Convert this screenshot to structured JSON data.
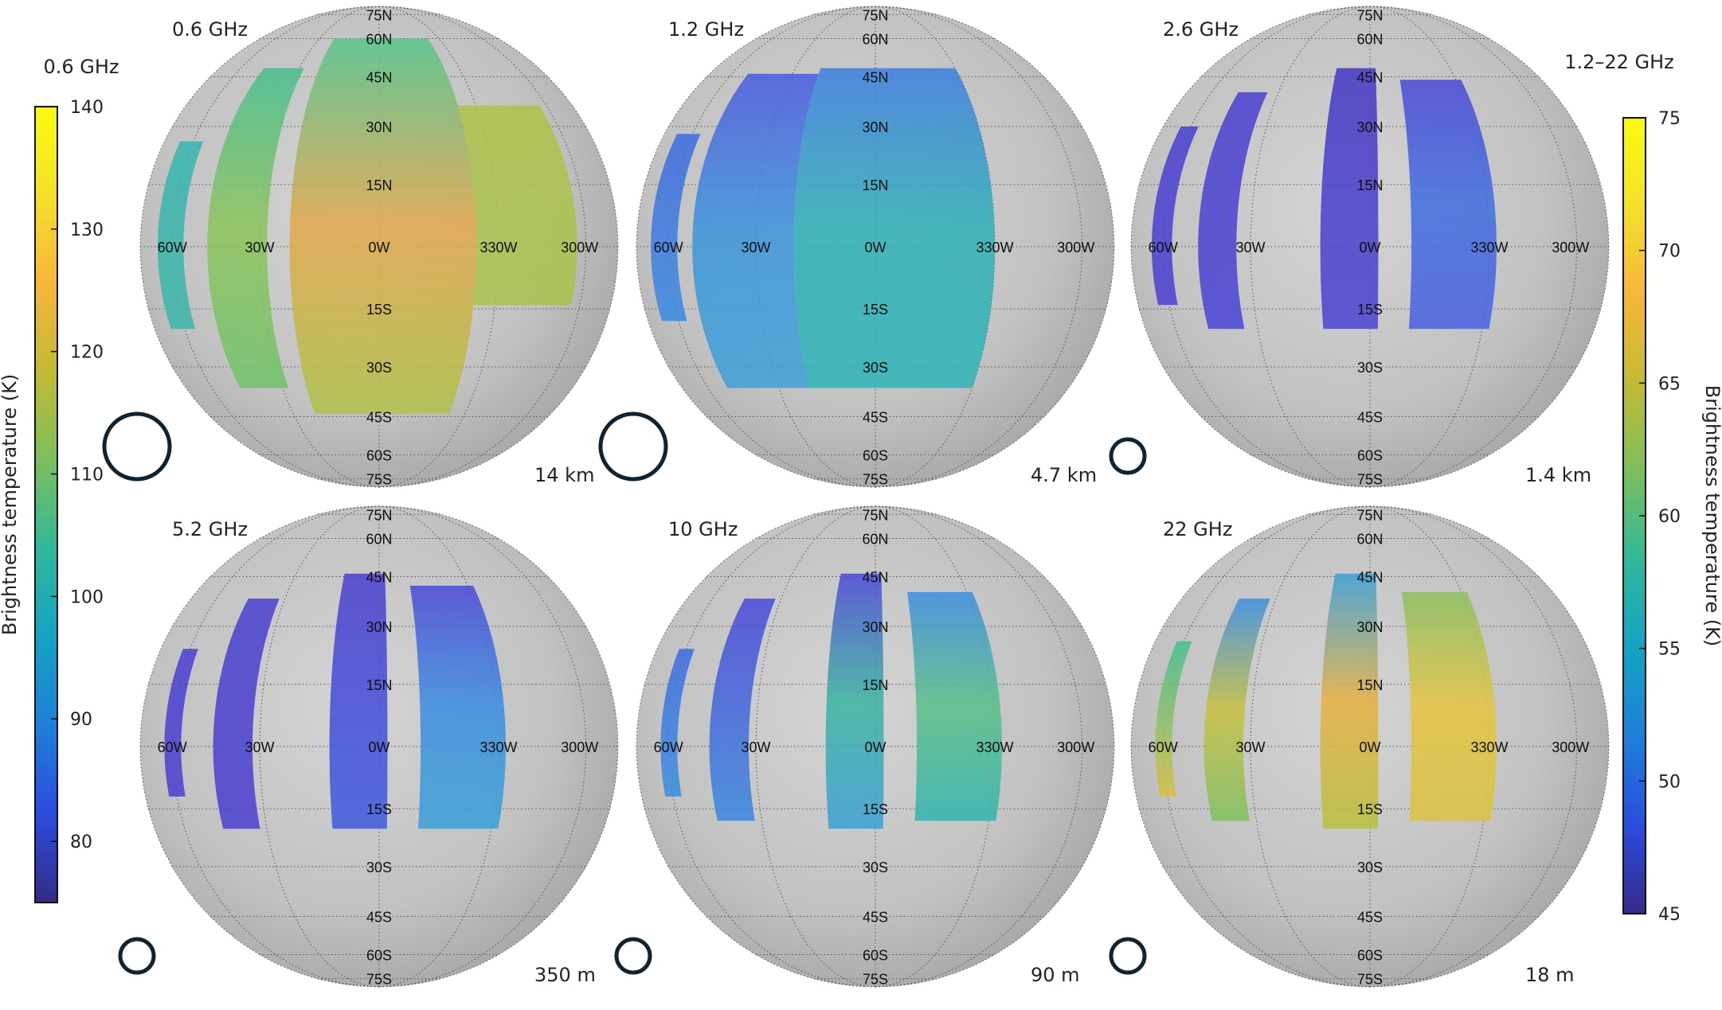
{
  "colorbar_left": {
    "title": "0.6 GHz",
    "label": "Brightness temperature (K)",
    "min": 75,
    "max": 140,
    "ticks": [
      80,
      90,
      100,
      110,
      120,
      130,
      140
    ]
  },
  "colorbar_right": {
    "title": "1.2–22 GHz",
    "label": "Brightness temperature (K)",
    "min": 45,
    "max": 75,
    "ticks": [
      45,
      50,
      55,
      60,
      65,
      70,
      75
    ]
  },
  "colormap": [
    "#352a87",
    "#2b4ce0",
    "#1e7fd8",
    "#14a3c4",
    "#2fb89a",
    "#7cbf5e",
    "#c3ba35",
    "#f6b63a",
    "#f5e02a",
    "#f9fb0e"
  ],
  "lat_labels": [
    "75N",
    "60N",
    "45N",
    "30N",
    "15N",
    "0W",
    "15S",
    "30S",
    "45S",
    "60S",
    "75S"
  ],
  "lon_labels": [
    "60W",
    "30W",
    "330W",
    "300W"
  ],
  "panels": [
    {
      "freq": "0.6 GHz",
      "resolution": "14 km",
      "beam": "large",
      "strips": [
        {
          "lon": [
            -68,
            -55
          ],
          "lat": [
            26,
            -20
          ],
          "colors": [
            "#35b5b0",
            "#3cb5a8"
          ]
        },
        {
          "lon": [
            -46,
            -28
          ],
          "lat": [
            48,
            -36
          ],
          "colors": [
            "#45c08f",
            "#8ec35a",
            "#6fc36c"
          ]
        },
        {
          "lon": [
            -22,
            24
          ],
          "lat": [
            60,
            -44
          ],
          "colors": [
            "#55c58c",
            "#e3a74a",
            "#b0c248"
          ]
        },
        {
          "lon": [
            24,
            56
          ],
          "lat": [
            36,
            -14
          ],
          "colors": [
            "#b0c248",
            "#a7c34c"
          ]
        }
      ]
    },
    {
      "freq": "1.2 GHz",
      "resolution": "4.7 km",
      "beam": "large",
      "strips": [
        {
          "lon": [
            -70,
            -56
          ],
          "lat": [
            28,
            -18
          ],
          "colors": [
            "#3d6ae0",
            "#3b8ae0"
          ]
        },
        {
          "lon": [
            -50,
            -20
          ],
          "lat": [
            46,
            -36
          ],
          "colors": [
            "#4a5ae0",
            "#3b94dc",
            "#3ea0d8"
          ]
        },
        {
          "lon": [
            -20,
            30
          ],
          "lat": [
            48,
            -36
          ],
          "colors": [
            "#3b7fe0",
            "#2fb0b8",
            "#2fb4b8"
          ]
        }
      ]
    },
    {
      "freq": "2.6 GHz",
      "resolution": "1.4 km",
      "beam": "small",
      "strips": [
        {
          "lon": [
            -66,
            -56
          ],
          "lat": [
            30,
            -14
          ],
          "colors": [
            "#4a3fd0",
            "#4a3fd0"
          ]
        },
        {
          "lon": [
            -46,
            -34
          ],
          "lat": [
            40,
            -20
          ],
          "colors": [
            "#4a3fd0",
            "#4a44d4"
          ]
        },
        {
          "lon": [
            -12,
            2
          ],
          "lat": [
            48,
            -20
          ],
          "colors": [
            "#4438c4",
            "#4a44d4"
          ]
        },
        {
          "lon": [
            10,
            32
          ],
          "lat": [
            44,
            -20
          ],
          "colors": [
            "#4a48d8",
            "#3f6ee0",
            "#4a60e0"
          ]
        }
      ]
    },
    {
      "freq": "5.2 GHz",
      "resolution": "350 m",
      "beam": "small",
      "strips": [
        {
          "lon": [
            -64,
            -56
          ],
          "lat": [
            24,
            -12
          ],
          "colors": [
            "#4a3fd0",
            "#4a3fd0"
          ]
        },
        {
          "lon": [
            -44,
            -32
          ],
          "lat": [
            38,
            -20
          ],
          "colors": [
            "#4a3fd0",
            "#4a3fd0"
          ]
        },
        {
          "lon": [
            -12,
            2
          ],
          "lat": [
            46,
            -20
          ],
          "colors": [
            "#4a3fd0",
            "#3e5ae0"
          ]
        },
        {
          "lon": [
            10,
            32
          ],
          "lat": [
            42,
            -20
          ],
          "colors": [
            "#4a48d8",
            "#3a8ee0",
            "#3aa0d8"
          ]
        }
      ]
    },
    {
      "freq": "10 GHz",
      "resolution": "90 m",
      "beam": "small",
      "strips": [
        {
          "lon": [
            -64,
            -56
          ],
          "lat": [
            24,
            -12
          ],
          "colors": [
            "#3d6ae0",
            "#3a8ee0"
          ]
        },
        {
          "lon": [
            -44,
            -32
          ],
          "lat": [
            38,
            -18
          ],
          "colors": [
            "#4a48d8",
            "#3b88e0"
          ]
        },
        {
          "lon": [
            -12,
            2
          ],
          "lat": [
            46,
            -20
          ],
          "colors": [
            "#4a48d8",
            "#3ab4a0",
            "#3aa0d8"
          ]
        },
        {
          "lon": [
            10,
            32
          ],
          "lat": [
            40,
            -18
          ],
          "colors": [
            "#3a8ee0",
            "#5abf88",
            "#30b4b0"
          ]
        }
      ]
    },
    {
      "freq": "22 GHz",
      "resolution": "18 m",
      "beam": "small",
      "strips": [
        {
          "lon": [
            -64,
            -56
          ],
          "lat": [
            26,
            -12
          ],
          "colors": [
            "#40c090",
            "#d8c040"
          ]
        },
        {
          "lon": [
            -44,
            -32
          ],
          "lat": [
            38,
            -18
          ],
          "colors": [
            "#3a8ee0",
            "#c8c040",
            "#80c060"
          ]
        },
        {
          "lon": [
            -12,
            2
          ],
          "lat": [
            46,
            -20
          ],
          "colors": [
            "#3aa0d8",
            "#e8b040",
            "#b8c040"
          ]
        },
        {
          "lon": [
            10,
            32
          ],
          "lat": [
            40,
            -18
          ],
          "colors": [
            "#8cc060",
            "#e8c440",
            "#d8c440"
          ]
        }
      ]
    }
  ]
}
